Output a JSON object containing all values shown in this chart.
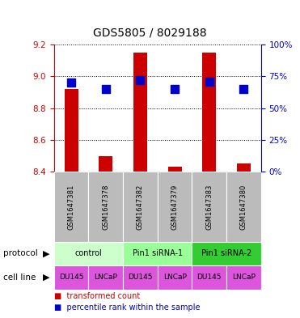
{
  "title": "GDS5805 / 8029188",
  "samples": [
    "GSM1647381",
    "GSM1647378",
    "GSM1647382",
    "GSM1647379",
    "GSM1647383",
    "GSM1647380"
  ],
  "transformed_counts": [
    8.92,
    8.5,
    9.15,
    8.43,
    9.15,
    8.45
  ],
  "percentile_ranks": [
    70,
    65,
    72,
    65,
    71,
    65
  ],
  "ylim_left": [
    8.4,
    9.2
  ],
  "ylim_right": [
    0,
    100
  ],
  "yticks_left": [
    8.4,
    8.6,
    8.8,
    9.0,
    9.2
  ],
  "yticks_right": [
    0,
    25,
    50,
    75,
    100
  ],
  "protocol_colors": {
    "control": "#ccffcc",
    "Pin1 siRNA-1": "#99ff99",
    "Pin1 siRNA-2": "#33cc33"
  },
  "protocols_unique": [
    [
      "control",
      0,
      1
    ],
    [
      "Pin1 siRNA-1",
      2,
      3
    ],
    [
      "Pin1 siRNA-2",
      4,
      5
    ]
  ],
  "cell_lines": [
    "DU145",
    "LNCaP",
    "DU145",
    "LNCaP",
    "DU145",
    "LNCaP"
  ],
  "cell_line_color": "#dd55dd",
  "sample_bg_color": "#bbbbbb",
  "bar_color": "#cc0000",
  "dot_color": "#0000cc",
  "bar_width": 0.4,
  "dot_size": 45,
  "left_axis_color": "#cc0000",
  "right_axis_color": "#0000cc",
  "legend_bar_label": "transformed count",
  "legend_dot_label": "percentile rank within the sample",
  "protocol_label": "protocol",
  "cell_line_label": "cell line"
}
